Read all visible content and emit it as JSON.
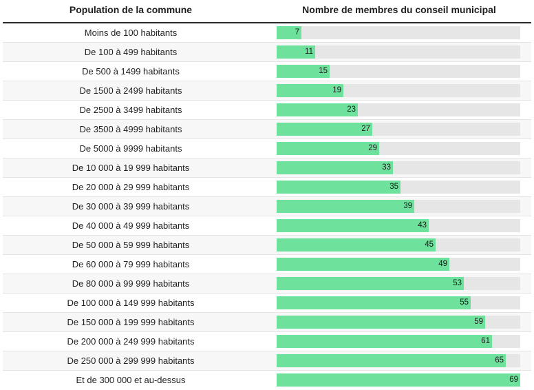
{
  "chart_data": {
    "type": "table",
    "columns": [
      "Population de la commune",
      "Nombre de membres du conseil municipal"
    ],
    "categories": [
      "Moins de 100 habitants",
      "De 100 à 499 habitants",
      "De 500 à 1499 habitants",
      "De 1500 à 2499 habitants",
      "De 2500 à 3499 habitants",
      "De 3500 à 4999 habitants",
      "De 5000 à 9999 habitants",
      "De 10 000 à 19 999 habitants",
      "De 20 000 à 29 999 habitants",
      "De 30 000 à 39 999 habitants",
      "De 40 000 à 49 999 habitants",
      "De 50 000 à 59 999 habitants",
      "De 60 000 à 79 999 habitants",
      "De 80 000 à 99 999 habitants",
      "De 100 000 à 149 999 habitants",
      "De 150 000 à 199 999 habitants",
      "De 200 000 à 249 999 habitants",
      "De 250 000 à 299 999 habitants",
      "Et de 300 000 et au-dessus"
    ],
    "values": [
      7,
      11,
      15,
      19,
      23,
      27,
      29,
      33,
      35,
      39,
      43,
      45,
      49,
      53,
      55,
      59,
      61,
      65,
      69
    ],
    "bar_max": 69,
    "bar_color": "#6ee29c",
    "track_color": "#e6e6e6",
    "grid": false
  }
}
